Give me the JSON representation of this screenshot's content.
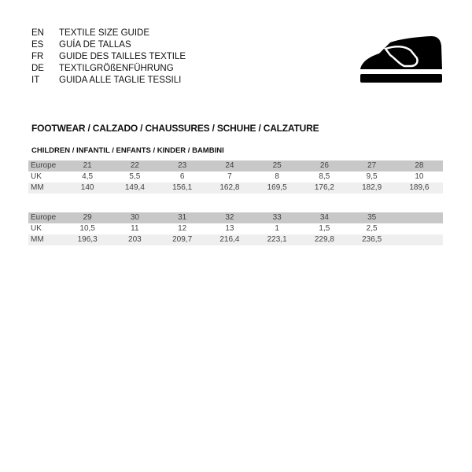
{
  "languages": [
    {
      "code": "EN",
      "label": "TEXTILE SIZE GUIDE"
    },
    {
      "code": "ES",
      "label": "GUÍA DE TALLAS"
    },
    {
      "code": "FR",
      "label": "GUIDE DES TAILLES TEXTILE"
    },
    {
      "code": "DE",
      "label": "TEXTILGRÖßENFÜHRUNG"
    },
    {
      "code": "IT",
      "label": "GUIDA ALLE TAGLIE TESSILI"
    }
  ],
  "icon": "shoe-icon",
  "section_title": "FOOTWEAR / CALZADO / CHAUSSURES / SCHUHE / CALZATURE",
  "subsection_title": "CHILDREN / INFANTIL / ENFANTS / KINDER / BAMBINI",
  "tables": [
    {
      "rows": [
        {
          "label": "Europe",
          "values": [
            "21",
            "22",
            "23",
            "24",
            "25",
            "26",
            "27",
            "28"
          ]
        },
        {
          "label": "UK",
          "values": [
            "4,5",
            "5,5",
            "6",
            "7",
            "8",
            "8,5",
            "9,5",
            "10"
          ]
        },
        {
          "label": "MM",
          "values": [
            "140",
            "149,4",
            "156,1",
            "162,8",
            "169,5",
            "176,2",
            "182,9",
            "189,6"
          ]
        }
      ]
    },
    {
      "rows": [
        {
          "label": "Europe",
          "values": [
            "29",
            "30",
            "31",
            "32",
            "33",
            "34",
            "35",
            ""
          ]
        },
        {
          "label": "UK",
          "values": [
            "10,5",
            "11",
            "12",
            "13",
            "1",
            "1,5",
            "2,5",
            ""
          ]
        },
        {
          "label": "MM",
          "values": [
            "196,3",
            "203",
            "209,7",
            "216,4",
            "223,1",
            "229,8",
            "236,5",
            ""
          ]
        }
      ]
    }
  ]
}
